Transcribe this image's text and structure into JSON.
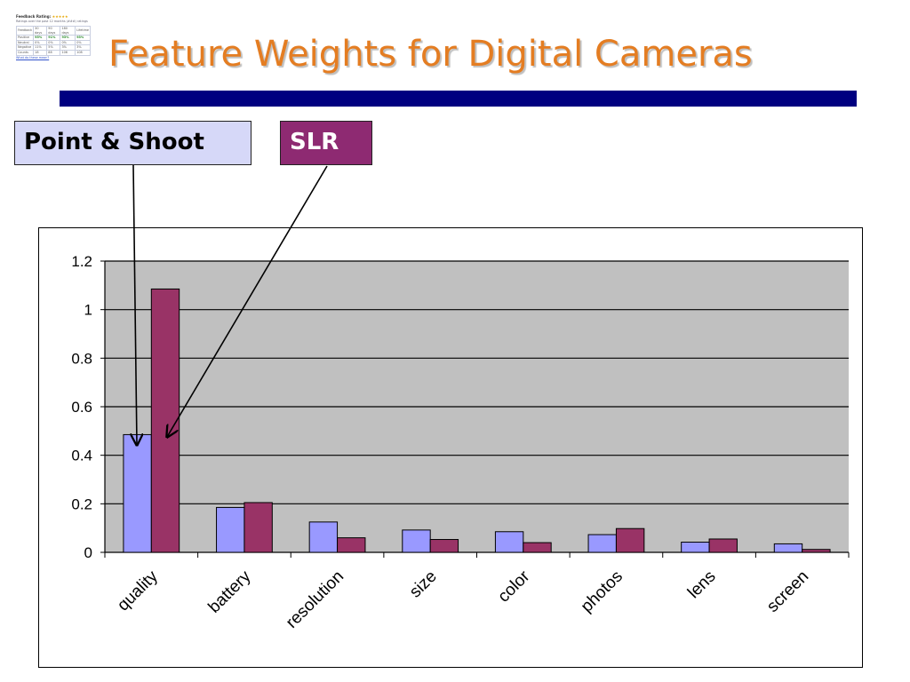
{
  "slide": {
    "title": "Feature Weights for Digital Cameras"
  },
  "thumbnail": {
    "title": "Feedback Rating:",
    "stars": "★★★★★",
    "subtitle": "Ratings over the past 12 months (###) ratings",
    "rows": [
      [
        "Feedback",
        "30 days",
        "90 days",
        "180 days",
        "Lifetime"
      ],
      [
        "Positive",
        "95%",
        "91%",
        "93%",
        "93%"
      ],
      [
        "Neutral",
        "0%",
        "0%",
        "0%",
        "0%"
      ],
      [
        "Negative",
        "11%",
        "5%",
        "3%",
        "3%"
      ],
      [
        "Counts",
        "18",
        "88",
        "106",
        "108"
      ]
    ],
    "link": "What do these mean?"
  },
  "legend": {
    "point_shoot": "Point & Shoot",
    "slr": "SLR"
  },
  "colors": {
    "title": "#e47d22",
    "title_bar": "#000080",
    "point_shoot": "#9999ff",
    "slr": "#993366",
    "plot_background": "#c0c0c0"
  },
  "chart_data": {
    "type": "bar",
    "categories": [
      "quality",
      "battery",
      "resolution",
      "size",
      "color",
      "photos",
      "lens",
      "screen"
    ],
    "series": [
      {
        "name": "Point & Shoot",
        "values": [
          0.485,
          0.185,
          0.125,
          0.092,
          0.085,
          0.073,
          0.042,
          0.035
        ]
      },
      {
        "name": "SLR",
        "values": [
          1.085,
          0.205,
          0.06,
          0.053,
          0.04,
          0.098,
          0.055,
          0.012
        ]
      }
    ],
    "ylim": [
      0,
      1.2
    ],
    "yticks": [
      "0",
      "0.2",
      "0.4",
      "0.6",
      "0.8",
      "1",
      "1.2"
    ],
    "ytick_values": [
      0,
      0.2,
      0.4,
      0.6,
      0.8,
      1,
      1.2
    ],
    "grid": true,
    "legend": "callout boxes above chart with arrows to quality bars"
  }
}
